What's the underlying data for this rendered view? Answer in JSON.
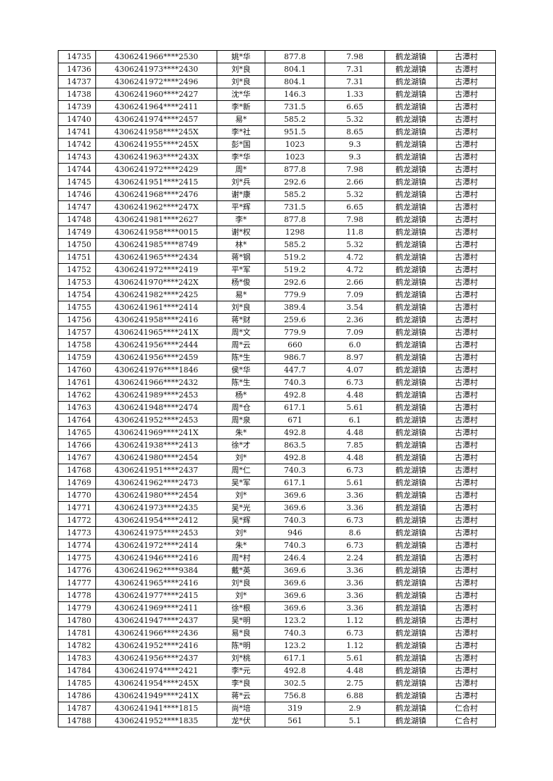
{
  "rows": [
    [
      "14735",
      "4306241966****2530",
      "姚*华",
      "877.8",
      "7.98",
      "鹤龙湖镇",
      "古潭村"
    ],
    [
      "14736",
      "4306241973****2430",
      "刘*良",
      "804.1",
      "7.31",
      "鹤龙湖镇",
      "古潭村"
    ],
    [
      "14737",
      "4306241972****2496",
      "刘*良",
      "804.1",
      "7.31",
      "鹤龙湖镇",
      "古潭村"
    ],
    [
      "14738",
      "4306241960****2427",
      "沈*华",
      "146.3",
      "1.33",
      "鹤龙湖镇",
      "古潭村"
    ],
    [
      "14739",
      "4306241964****2411",
      "李*新",
      "731.5",
      "6.65",
      "鹤龙湖镇",
      "古潭村"
    ],
    [
      "14740",
      "4306241974****2457",
      "易*",
      "585.2",
      "5.32",
      "鹤龙湖镇",
      "古潭村"
    ],
    [
      "14741",
      "4306241958****245X",
      "李*社",
      "951.5",
      "8.65",
      "鹤龙湖镇",
      "古潭村"
    ],
    [
      "14742",
      "4306241955****245X",
      "彭*国",
      "1023",
      "9.3",
      "鹤龙湖镇",
      "古潭村"
    ],
    [
      "14743",
      "4306241963****243X",
      "李*华",
      "1023",
      "9.3",
      "鹤龙湖镇",
      "古潭村"
    ],
    [
      "14744",
      "4306241972****2429",
      "周*",
      "877.8",
      "7.98",
      "鹤龙湖镇",
      "古潭村"
    ],
    [
      "14745",
      "4306241951****2415",
      "刘*兵",
      "292.6",
      "2.66",
      "鹤龙湖镇",
      "古潭村"
    ],
    [
      "14746",
      "4306241968****2476",
      "谢*康",
      "585.2",
      "5.32",
      "鹤龙湖镇",
      "古潭村"
    ],
    [
      "14747",
      "4306241962****247X",
      "平*辉",
      "731.5",
      "6.65",
      "鹤龙湖镇",
      "古潭村"
    ],
    [
      "14748",
      "4306241981****2627",
      "李*",
      "877.8",
      "7.98",
      "鹤龙湖镇",
      "古潭村"
    ],
    [
      "14749",
      "4306241958****0015",
      "谢*权",
      "1298",
      "11.8",
      "鹤龙湖镇",
      "古潭村"
    ],
    [
      "14750",
      "4306241985****8749",
      "林*",
      "585.2",
      "5.32",
      "鹤龙湖镇",
      "古潭村"
    ],
    [
      "14751",
      "4306241965****2434",
      "蒋*钢",
      "519.2",
      "4.72",
      "鹤龙湖镇",
      "古潭村"
    ],
    [
      "14752",
      "4306241972****2419",
      "平*军",
      "519.2",
      "4.72",
      "鹤龙湖镇",
      "古潭村"
    ],
    [
      "14753",
      "4306241970****242X",
      "杨*俊",
      "292.6",
      "2.66",
      "鹤龙湖镇",
      "古潭村"
    ],
    [
      "14754",
      "4306241982****2425",
      "易*",
      "779.9",
      "7.09",
      "鹤龙湖镇",
      "古潭村"
    ],
    [
      "14755",
      "4306241961****2414",
      "刘*良",
      "389.4",
      "3.54",
      "鹤龙湖镇",
      "古潭村"
    ],
    [
      "14756",
      "4306241958****2416",
      "蒋*财",
      "259.6",
      "2.36",
      "鹤龙湖镇",
      "古潭村"
    ],
    [
      "14757",
      "4306241965****241X",
      "周*文",
      "779.9",
      "7.09",
      "鹤龙湖镇",
      "古潭村"
    ],
    [
      "14758",
      "4306241956****2444",
      "周*云",
      "660",
      "6.0",
      "鹤龙湖镇",
      "古潭村"
    ],
    [
      "14759",
      "4306241956****2459",
      "陈*生",
      "986.7",
      "8.97",
      "鹤龙湖镇",
      "古潭村"
    ],
    [
      "14760",
      "4306241976****1846",
      "侯*华",
      "447.7",
      "4.07",
      "鹤龙湖镇",
      "古潭村"
    ],
    [
      "14761",
      "4306241966****2432",
      "陈*生",
      "740.3",
      "6.73",
      "鹤龙湖镇",
      "古潭村"
    ],
    [
      "14762",
      "4306241989****2453",
      "杨*",
      "492.8",
      "4.48",
      "鹤龙湖镇",
      "古潭村"
    ],
    [
      "14763",
      "4306241948****2474",
      "周*仓",
      "617.1",
      "5.61",
      "鹤龙湖镇",
      "古潭村"
    ],
    [
      "14764",
      "4306241952****2453",
      "周*泉",
      "671",
      "6.1",
      "鹤龙湖镇",
      "古潭村"
    ],
    [
      "14765",
      "4306241969****241X",
      "朱*",
      "492.8",
      "4.48",
      "鹤龙湖镇",
      "古潭村"
    ],
    [
      "14766",
      "4306241938****2413",
      "徐*才",
      "863.5",
      "7.85",
      "鹤龙湖镇",
      "古潭村"
    ],
    [
      "14767",
      "4306241980****2454",
      "刘*",
      "492.8",
      "4.48",
      "鹤龙湖镇",
      "古潭村"
    ],
    [
      "14768",
      "4306241951****2437",
      "周*仁",
      "740.3",
      "6.73",
      "鹤龙湖镇",
      "古潭村"
    ],
    [
      "14769",
      "4306241962****2473",
      "吴*军",
      "617.1",
      "5.61",
      "鹤龙湖镇",
      "古潭村"
    ],
    [
      "14770",
      "4306241980****2454",
      "刘*",
      "369.6",
      "3.36",
      "鹤龙湖镇",
      "古潭村"
    ],
    [
      "14771",
      "4306241973****2435",
      "吴*光",
      "369.6",
      "3.36",
      "鹤龙湖镇",
      "古潭村"
    ],
    [
      "14772",
      "4306241954****2412",
      "吴*辉",
      "740.3",
      "6.73",
      "鹤龙湖镇",
      "古潭村"
    ],
    [
      "14773",
      "4306241975****2453",
      "刘*",
      "946",
      "8.6",
      "鹤龙湖镇",
      "古潭村"
    ],
    [
      "14774",
      "4306241972****2414",
      "朱*",
      "740.3",
      "6.73",
      "鹤龙湖镇",
      "古潭村"
    ],
    [
      "14775",
      "4306241946****2416",
      "周*村",
      "246.4",
      "2.24",
      "鹤龙湖镇",
      "古潭村"
    ],
    [
      "14776",
      "4306241962****9384",
      "戴*英",
      "369.6",
      "3.36",
      "鹤龙湖镇",
      "古潭村"
    ],
    [
      "14777",
      "4306241965****2416",
      "刘*良",
      "369.6",
      "3.36",
      "鹤龙湖镇",
      "古潭村"
    ],
    [
      "14778",
      "4306241977****2415",
      "刘*",
      "369.6",
      "3.36",
      "鹤龙湖镇",
      "古潭村"
    ],
    [
      "14779",
      "4306241969****2411",
      "徐*根",
      "369.6",
      "3.36",
      "鹤龙湖镇",
      "古潭村"
    ],
    [
      "14780",
      "4306241947****2437",
      "吴*明",
      "123.2",
      "1.12",
      "鹤龙湖镇",
      "古潭村"
    ],
    [
      "14781",
      "4306241966****2436",
      "易*良",
      "740.3",
      "6.73",
      "鹤龙湖镇",
      "古潭村"
    ],
    [
      "14782",
      "4306241952****2416",
      "陈*明",
      "123.2",
      "1.12",
      "鹤龙湖镇",
      "古潭村"
    ],
    [
      "14783",
      "4306241956****2437",
      "刘*桃",
      "617.1",
      "5.61",
      "鹤龙湖镇",
      "古潭村"
    ],
    [
      "14784",
      "4306241974****2421",
      "李*元",
      "492.8",
      "4.48",
      "鹤龙湖镇",
      "古潭村"
    ],
    [
      "14785",
      "4306241954****245X",
      "李*良",
      "302.5",
      "2.75",
      "鹤龙湖镇",
      "古潭村"
    ],
    [
      "14786",
      "4306241949****241X",
      "蒋*云",
      "756.8",
      "6.88",
      "鹤龙湖镇",
      "古潭村"
    ],
    [
      "14787",
      "4306241941****1815",
      "尚*培",
      "319",
      "2.9",
      "鹤龙湖镇",
      "仁合村"
    ],
    [
      "14788",
      "4306241952****1835",
      "龙*伏",
      "561",
      "5.1",
      "鹤龙湖镇",
      "仁合村"
    ]
  ]
}
